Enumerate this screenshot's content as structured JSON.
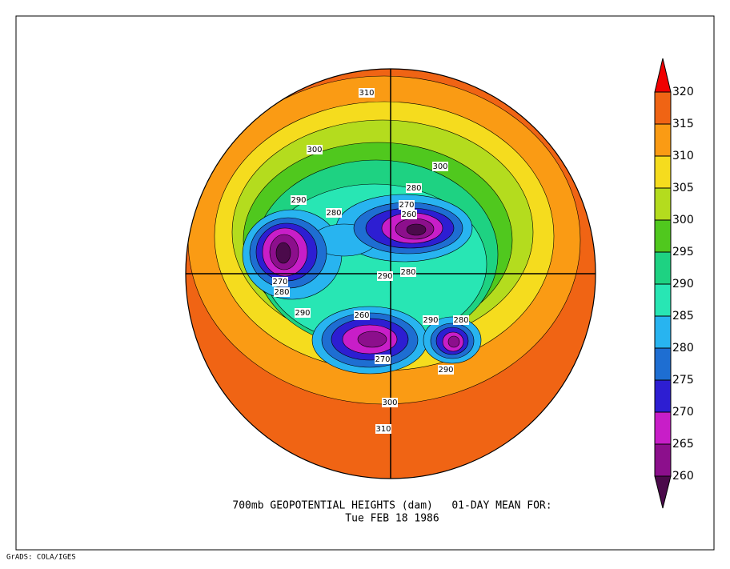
{
  "title": "700mb GEOPOTENTIAL HEIGHTS (dam)   01-DAY MEAN FOR:",
  "subtitle": "Tue FEB 18 1986",
  "footer": "GrADS: COLA/IGES",
  "colorbar": {
    "labels": [
      320,
      315,
      310,
      305,
      300,
      295,
      290,
      285,
      280,
      275,
      270,
      265,
      260
    ],
    "colors": [
      "#f00000",
      "#f06414",
      "#fa9b14",
      "#f5dc1e",
      "#b4dc1e",
      "#50c81e",
      "#1ed282",
      "#28e6b4",
      "#28b4f0",
      "#1e6ed2",
      "#2d1ed2",
      "#c81ec8",
      "#8c0f8c",
      "#4b0a4b"
    ]
  },
  "contour_labels": [
    310,
    300,
    300,
    290,
    280,
    280,
    270,
    260,
    270,
    280,
    290,
    280,
    290,
    260,
    290,
    280,
    270,
    290,
    300,
    310
  ]
}
